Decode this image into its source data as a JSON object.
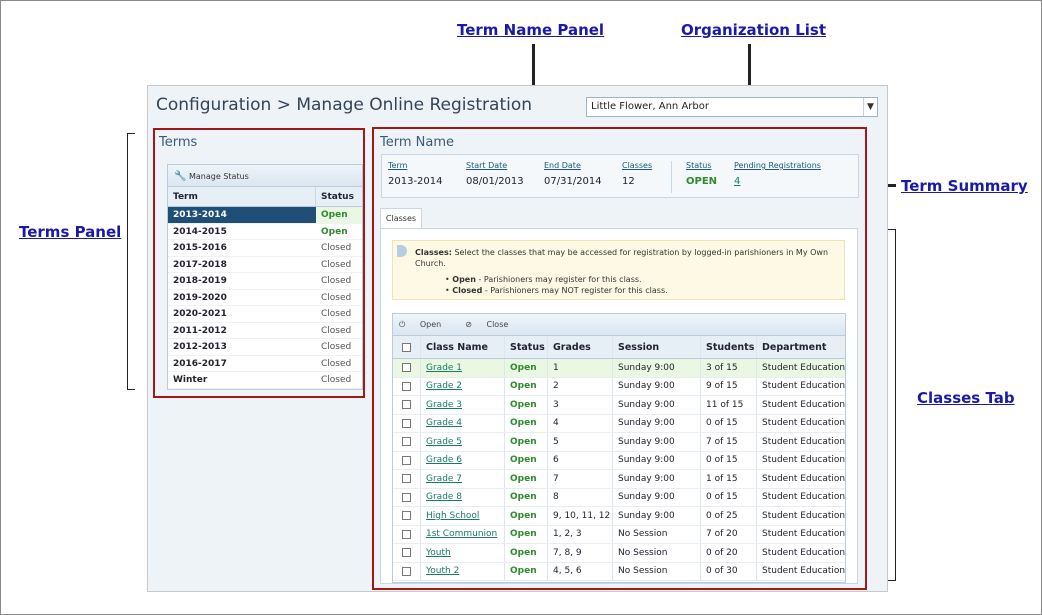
{
  "callouts": {
    "term_name_panel": "Term Name Panel",
    "organization_list": "Organization List",
    "term_summary": "Term Summary",
    "terms_panel": "Terms Panel",
    "classes_tab": "Classes Tab"
  },
  "app": {
    "title": "Configuration > Manage Online Registration",
    "organization": "Little Flower, Ann Arbor",
    "organization_caret": "▼"
  },
  "terms": {
    "heading": "Terms",
    "toolbar_label": "Manage Status",
    "col_term": "Term",
    "col_status": "Status",
    "rows": [
      {
        "term": "2013-2014",
        "status": "Open"
      },
      {
        "term": "2014-2015",
        "status": "Open"
      },
      {
        "term": "2015-2016",
        "status": "Closed"
      },
      {
        "term": "2017-2018",
        "status": "Closed"
      },
      {
        "term": "2018-2019",
        "status": "Closed"
      },
      {
        "term": "2019-2020",
        "status": "Closed"
      },
      {
        "term": "2020-2021",
        "status": "Closed"
      },
      {
        "term": "2011-2012",
        "status": "Closed"
      },
      {
        "term": "2012-2013",
        "status": "Closed"
      },
      {
        "term": "2016-2017",
        "status": "Closed"
      },
      {
        "term": "Winter",
        "status": "Closed"
      }
    ]
  },
  "term_name": {
    "heading": "Term Name",
    "summary": {
      "term_label": "Term",
      "term": "2013-2014",
      "start_label": "Start Date",
      "start": "08/01/2013",
      "end_label": "End Date",
      "end": "07/31/2014",
      "classes_label": "Classes",
      "classes": "12",
      "status_label": "Status",
      "status": "OPEN",
      "pending_label": "Pending Registrations",
      "pending": "4"
    },
    "tab_label": "Classes",
    "info": {
      "lead_bold": "Classes:",
      "lead_text": "Select the classes that may be accessed for registration by logged-in parishioners in My Own Church.",
      "open_bold": "Open",
      "open_text": "- Parishioners may register for this class.",
      "closed_bold": "Closed",
      "closed_text": "- Parishioners may NOT register for this class."
    },
    "toolbar": {
      "open": "Open",
      "close": "Close"
    },
    "columns": {
      "name": "Class Name",
      "status": "Status",
      "grades": "Grades",
      "session": "Session",
      "students": "Students",
      "department": "Department"
    },
    "classes": [
      {
        "name": "Grade 1",
        "status": "Open",
        "grades": "1",
        "session": "Sunday 9:00",
        "students": "3 of 15",
        "department": "Student Education"
      },
      {
        "name": "Grade 2",
        "status": "Open",
        "grades": "2",
        "session": "Sunday 9:00",
        "students": "9 of 15",
        "department": "Student Education"
      },
      {
        "name": "Grade 3",
        "status": "Open",
        "grades": "3",
        "session": "Sunday 9:00",
        "students": "11 of 15",
        "department": "Student Education"
      },
      {
        "name": "Grade 4",
        "status": "Open",
        "grades": "4",
        "session": "Sunday 9:00",
        "students": "0 of 15",
        "department": "Student Education"
      },
      {
        "name": "Grade 5",
        "status": "Open",
        "grades": "5",
        "session": "Sunday 9:00",
        "students": "7 of 15",
        "department": "Student Education"
      },
      {
        "name": "Grade 6",
        "status": "Open",
        "grades": "6",
        "session": "Sunday 9:00",
        "students": "0 of 15",
        "department": "Student Education"
      },
      {
        "name": "Grade 7",
        "status": "Open",
        "grades": "7",
        "session": "Sunday 9:00",
        "students": "1 of 15",
        "department": "Student Education"
      },
      {
        "name": "Grade 8",
        "status": "Open",
        "grades": "8",
        "session": "Sunday 9:00",
        "students": "0 of 15",
        "department": "Student Education"
      },
      {
        "name": "High School",
        "status": "Open",
        "grades": "9, 10, 11, 12",
        "session": "Sunday 9:00",
        "students": "0 of 25",
        "department": "Student Education"
      },
      {
        "name": "1st Communion",
        "status": "Open",
        "grades": "1, 2, 3",
        "session": "No Session",
        "students": "7 of 20",
        "department": "Student Education"
      },
      {
        "name": "Youth",
        "status": "Open",
        "grades": "7, 8, 9",
        "session": "No Session",
        "students": "0 of 20",
        "department": "Student Education"
      },
      {
        "name": "Youth 2",
        "status": "Open",
        "grades": "4, 5, 6",
        "session": "No Session",
        "students": "0 of 30",
        "department": "Student Education"
      }
    ]
  }
}
